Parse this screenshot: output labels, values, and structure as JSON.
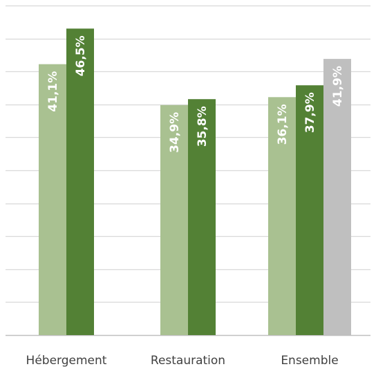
{
  "chart_data": {
    "type": "bar",
    "categories": [
      "Hébergement",
      "Restauration",
      "Ensemble"
    ],
    "series": [
      {
        "values": [
          41.1,
          34.9,
          36.1
        ],
        "labels": [
          "41,1%",
          "34,9%",
          "36,1%"
        ],
        "color": "#a9c191"
      },
      {
        "values": [
          46.5,
          35.8,
          37.9
        ],
        "labels": [
          "46,5%",
          "35,8%",
          "37,9%"
        ],
        "color": "#538135"
      },
      {
        "values": [
          null,
          null,
          41.9
        ],
        "labels": [
          null,
          null,
          "41,9%"
        ],
        "color": "#bfbfbf"
      }
    ],
    "ylim": [
      0,
      50
    ],
    "gridlines": true,
    "legend": "none"
  }
}
